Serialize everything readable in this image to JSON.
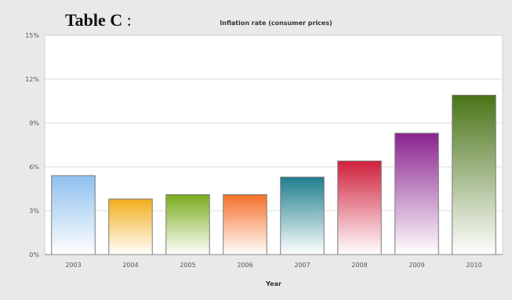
{
  "label": {
    "prefix": "Table C",
    "suffix": " :"
  },
  "chart_data": {
    "type": "bar",
    "title": "Inflation rate (consumer prices)",
    "xlabel": "Year",
    "ylabel": "",
    "categories": [
      "2003",
      "2004",
      "2005",
      "2006",
      "2007",
      "2008",
      "2009",
      "2010"
    ],
    "values": [
      5.4,
      3.8,
      4.1,
      4.1,
      5.3,
      6.4,
      8.3,
      10.9
    ],
    "ylim": [
      0,
      15
    ],
    "yticks": [
      0,
      3,
      6,
      9,
      12,
      15
    ],
    "ytick_labels": [
      "0%",
      "3%",
      "6%",
      "9%",
      "12%",
      "15%"
    ],
    "grid": true,
    "legend": "none",
    "colors": [
      "#8fc0ee",
      "#f2ae1c",
      "#7aac1e",
      "#f5702a",
      "#1f7d8e",
      "#d0203c",
      "#8a238f",
      "#4a7418"
    ]
  }
}
